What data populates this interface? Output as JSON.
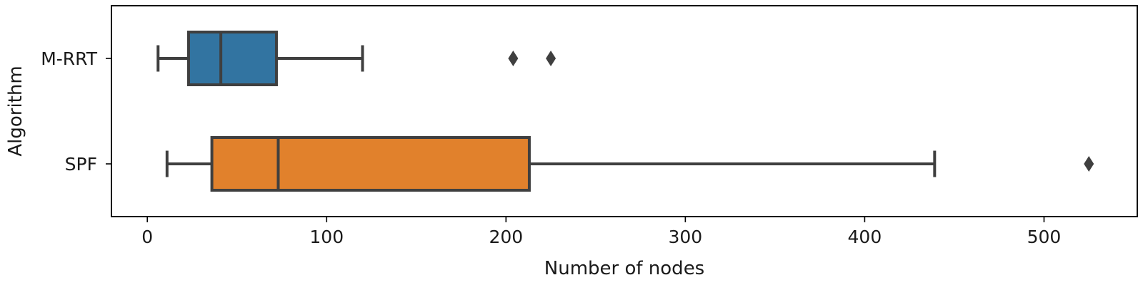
{
  "chart_data": {
    "type": "boxplot",
    "orientation": "horizontal",
    "title": "",
    "xlabel": "Number of nodes",
    "ylabel": "Algorithm",
    "xlim": [
      -20,
      552
    ],
    "xticks": [
      0,
      100,
      200,
      300,
      400,
      500
    ],
    "grid": false,
    "legend": "none",
    "categories": [
      "M-RRT",
      "SPF"
    ],
    "series": [
      {
        "category": "M-RRT",
        "color": "#3274a1",
        "whisker_low": 6,
        "q1": 23,
        "median": 41,
        "q3": 72,
        "whisker_high": 120,
        "outliers": [
          204,
          225
        ]
      },
      {
        "category": "SPF",
        "color": "#e1812c",
        "whisker_low": 11,
        "q1": 36,
        "median": 73,
        "q3": 213,
        "whisker_high": 439,
        "outliers": [
          525
        ]
      }
    ]
  }
}
